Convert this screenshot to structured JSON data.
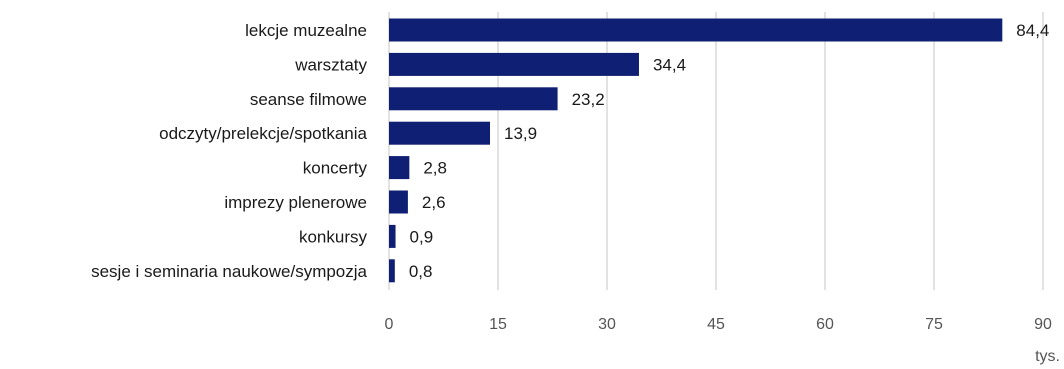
{
  "chart_data": {
    "type": "bar",
    "orientation": "horizontal",
    "categories": [
      "lekcje muzealne",
      "warsztaty",
      "seanse filmowe",
      "odczyty/prelekcje/spotkania",
      "koncerty",
      "imprezy plenerowe",
      "konkursy",
      "sesje i seminaria naukowe/sympozja"
    ],
    "values": [
      84.4,
      34.4,
      23.2,
      13.9,
      2.8,
      2.6,
      0.9,
      0.8
    ],
    "value_labels": [
      "84,4",
      "34,4",
      "23,2",
      "13,9",
      "2,8",
      "2,6",
      "0,9",
      "0,8"
    ],
    "xlim": [
      0,
      90
    ],
    "xticks": [
      0,
      15,
      30,
      45,
      60,
      75,
      90
    ],
    "xtick_labels": [
      "0",
      "15",
      "30",
      "45",
      "60",
      "75",
      "90"
    ],
    "unit": "tys.",
    "grid": "vertical",
    "legend": "none",
    "bar_color": "#0f1f73",
    "grid_color": "#d9d9d9"
  }
}
